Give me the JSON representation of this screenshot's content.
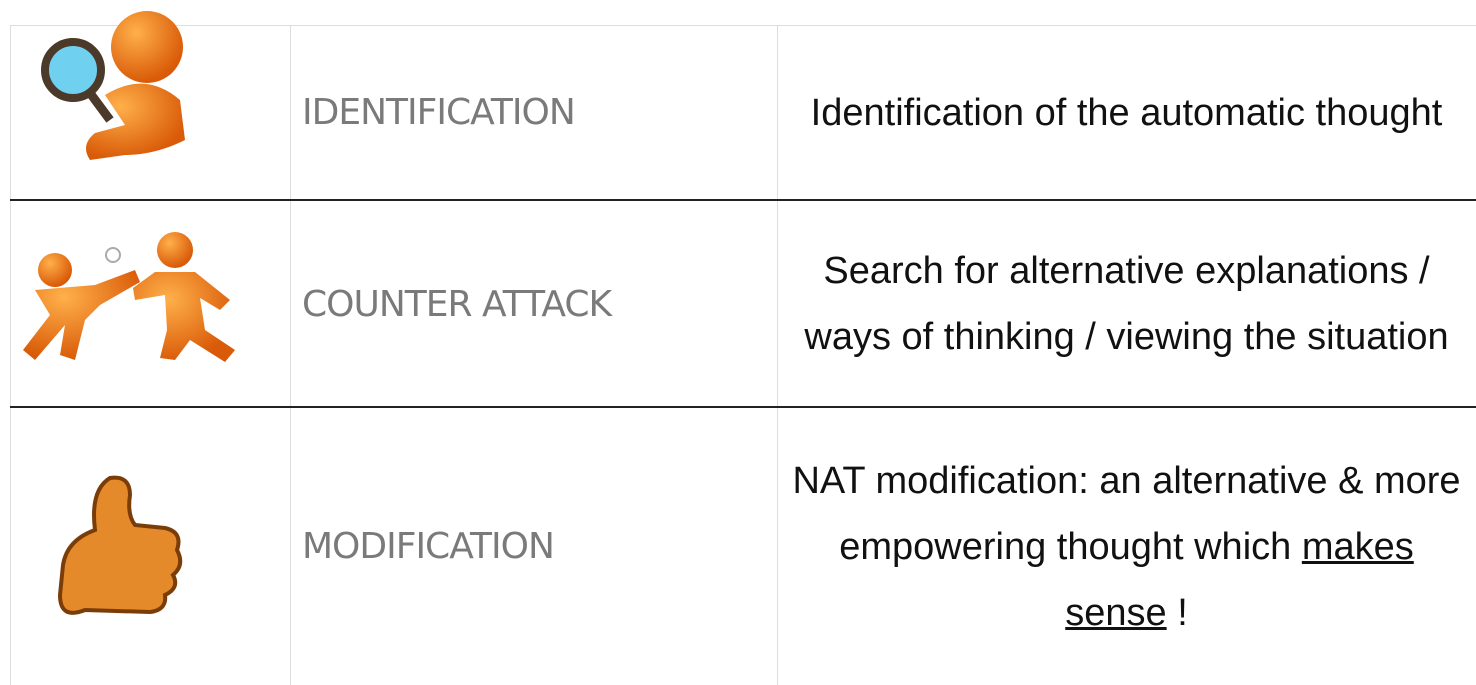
{
  "table": {
    "rows": [
      {
        "label": "IDENTIFICATION",
        "description": "Identification of the automatic thought"
      },
      {
        "label": "COUNTER ATTACK",
        "description": "Search for alternative explanations / ways of thinking / viewing the situation"
      },
      {
        "label": "MODIFICATION",
        "description_parts": [
          "NAT modification: an alternative & more empowering thought which",
          "makes sense",
          "!"
        ]
      }
    ]
  }
}
